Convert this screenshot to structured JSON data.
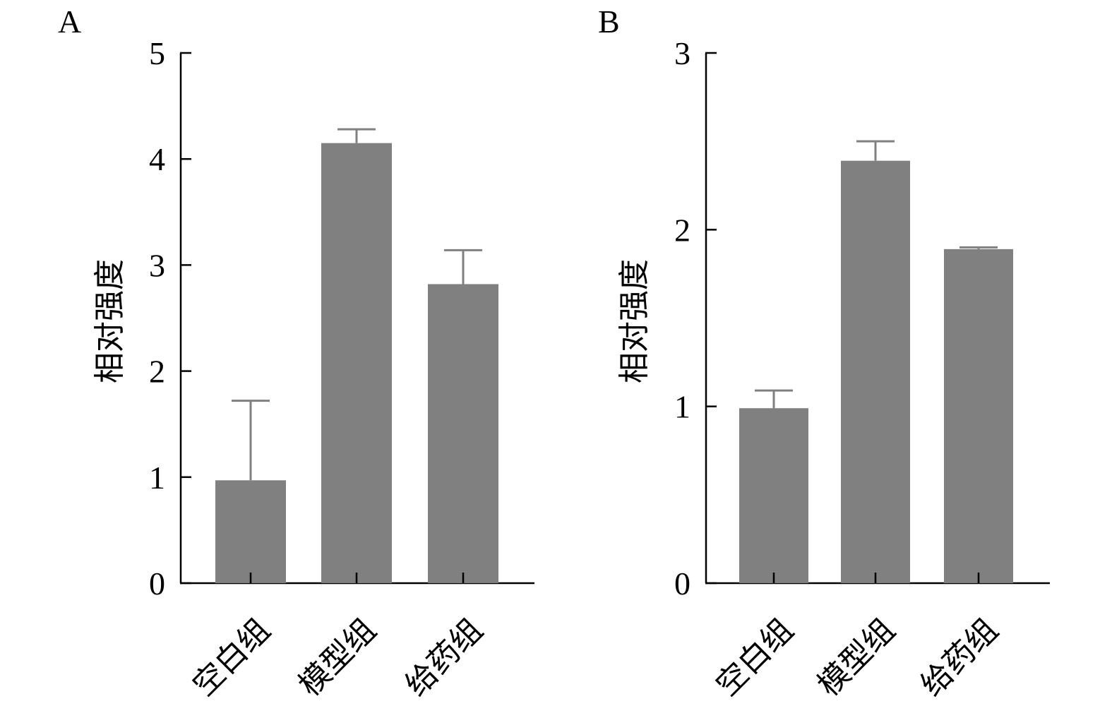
{
  "chart_data": [
    {
      "panel": "A",
      "type": "bar",
      "title": "",
      "xlabel": "",
      "ylabel": "相对强度",
      "ylim": [
        0,
        5
      ],
      "yticks": [
        "0",
        "1",
        "2",
        "3",
        "4",
        "5"
      ],
      "categories": [
        "空白组",
        "模型组",
        "给药组"
      ],
      "values": [
        0.97,
        4.15,
        2.82
      ],
      "errors": [
        0.75,
        0.13,
        0.32
      ],
      "bar_color": "#808080",
      "error_color": "#808080",
      "grid": false,
      "legend": "none"
    },
    {
      "panel": "B",
      "type": "bar",
      "title": "",
      "xlabel": "",
      "ylabel": "相对强度",
      "ylim": [
        0,
        3
      ],
      "yticks": [
        "0",
        "1",
        "2",
        "3"
      ],
      "categories": [
        "空白组",
        "模型组",
        "给药组"
      ],
      "values": [
        0.99,
        2.39,
        1.89
      ],
      "errors": [
        0.1,
        0.11,
        0.01
      ],
      "bar_color": "#808080",
      "error_color": "#808080",
      "grid": false,
      "legend": "none"
    }
  ]
}
